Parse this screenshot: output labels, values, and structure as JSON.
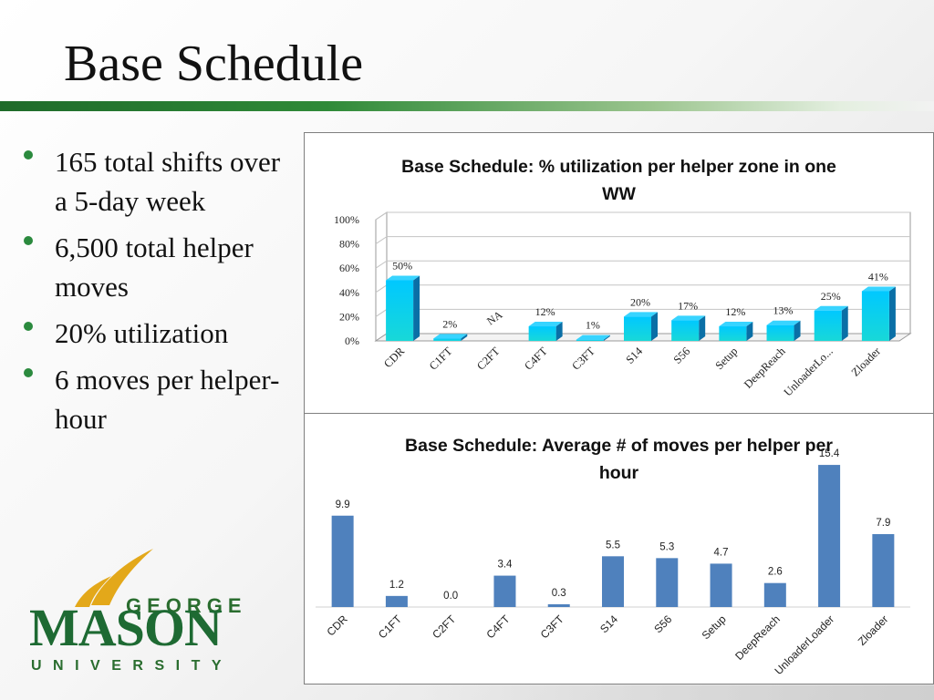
{
  "slide": {
    "title": "Base Schedule",
    "bullets": [
      "165 total shifts over a 5-day week",
      "6,500 total helper moves",
      "20% utilization",
      "6 moves per helper-hour"
    ]
  },
  "logo": {
    "line1": "GEORGE",
    "line2": "MASON",
    "line3": "UNIVERSITY"
  },
  "colors": {
    "accent_green": "#2b8a3e",
    "bar_cyan_top": "#00c8ff",
    "bar_cyan_bottom": "#18d8d8",
    "bar_blue": "#4f81bd"
  },
  "chart_data": [
    {
      "type": "bar",
      "title": "Base Schedule: % utilization per helper zone in one WW",
      "title_lines": [
        "Base Schedule: % utilization per helper zone in one",
        "WW"
      ],
      "categories": [
        "CDR",
        "C1FT",
        "C2FT",
        "C4FT",
        "C3FT",
        "S14",
        "S56",
        "Setup",
        "DeepReach",
        "UnloaderLo...",
        "Zloader"
      ],
      "values": [
        50,
        2,
        null,
        12,
        1,
        20,
        17,
        12,
        13,
        25,
        41
      ],
      "data_labels": [
        "50%",
        "2%",
        "NA",
        "12%",
        "1%",
        "20%",
        "17%",
        "12%",
        "13%",
        "25%",
        "41%"
      ],
      "y_ticks": [
        "0%",
        "20%",
        "40%",
        "60%",
        "80%",
        "100%"
      ],
      "ylim": [
        0,
        100
      ],
      "style": "3d",
      "grid": true,
      "legend": "none"
    },
    {
      "type": "bar",
      "title": "Base Schedule: Average # of moves per helper per hour",
      "title_lines": [
        "Base Schedule: Average # of moves per helper per",
        "hour"
      ],
      "categories": [
        "CDR",
        "C1FT",
        "C2FT",
        "C4FT",
        "C3FT",
        "S14",
        "S56",
        "Setup",
        "DeepReach",
        "UnloaderLoader",
        "Zloader"
      ],
      "values": [
        9.9,
        1.2,
        0.0,
        3.4,
        0.3,
        5.5,
        5.3,
        4.7,
        2.6,
        15.4,
        7.9
      ],
      "data_labels": [
        "9.9",
        "1.2",
        "0.0",
        "3.4",
        "0.3",
        "5.5",
        "5.3",
        "4.7",
        "2.6",
        "15.4",
        "7.9"
      ],
      "ylim": [
        0,
        16
      ],
      "grid": false,
      "legend": "none"
    }
  ]
}
